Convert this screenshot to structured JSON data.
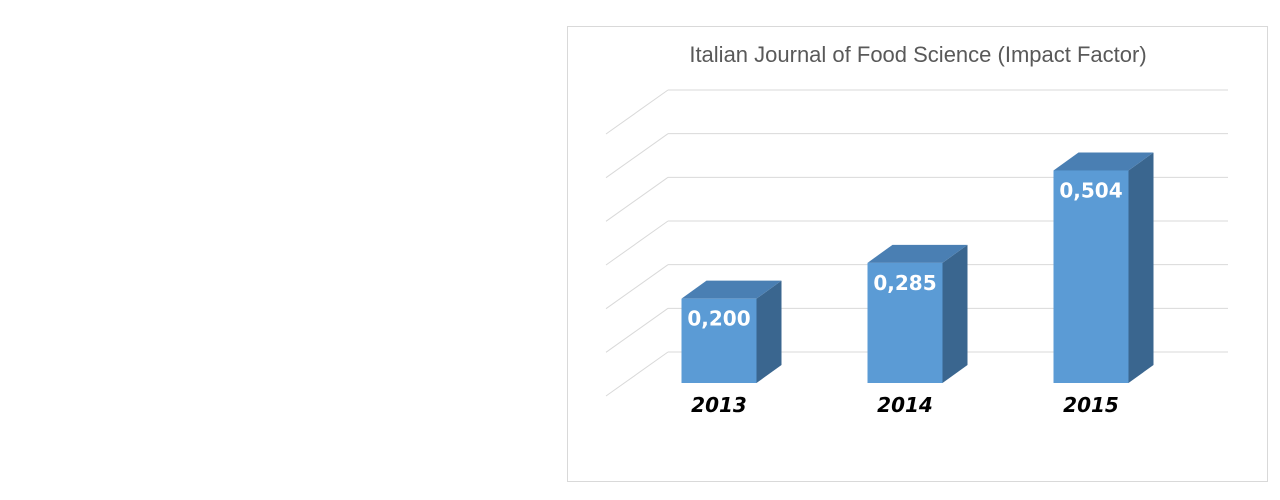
{
  "chart_data": {
    "type": "bar",
    "title": "Italian Journal of Food Science (Impact Factor)",
    "categories": [
      "2013",
      "2014",
      "2015"
    ],
    "values": [
      0.2,
      0.285,
      0.504
    ],
    "value_labels": [
      "0,200",
      "0,285",
      "0,504"
    ],
    "ylim": [
      0,
      0.6
    ],
    "grid": true,
    "style": "3d-column",
    "colors": {
      "front": "#5b9bd5",
      "side": "#3a668f",
      "top": "#4a7fb3",
      "grid": "#d9d9d9"
    }
  }
}
